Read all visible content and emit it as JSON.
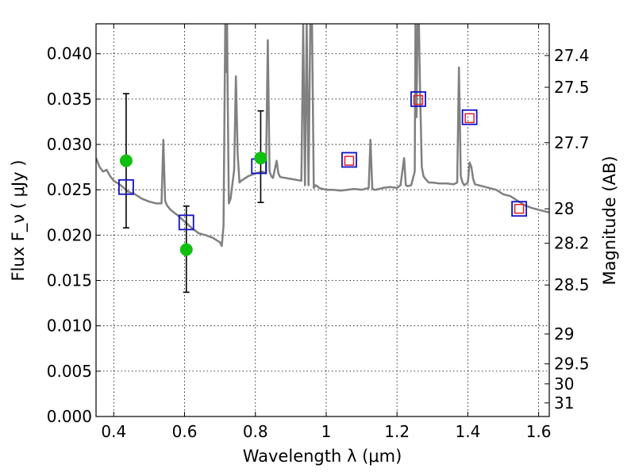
{
  "chart_data": {
    "type": "scatter",
    "xlabel": "Wavelength  λ (μm)",
    "ylabel": "Flux  F_ν  ( μJy )",
    "ylabel_right": "Magnitude (AB)",
    "xlim": [
      0.35,
      1.63
    ],
    "ylim": [
      0.0,
      0.0433
    ],
    "grid": true,
    "x_ticks": [
      0.4,
      0.6,
      0.8,
      1.0,
      1.2,
      1.4,
      1.6
    ],
    "x_tick_labels": [
      "0.4",
      "0.6",
      "0.8",
      "1",
      "1.2",
      "1.4",
      "1.6"
    ],
    "y_ticks": [
      0.0,
      0.005,
      0.01,
      0.015,
      0.02,
      0.025,
      0.03,
      0.035,
      0.04
    ],
    "y_tick_labels": [
      "0.000",
      "0.005",
      "0.010",
      "0.015",
      "0.020",
      "0.025",
      "0.030",
      "0.035",
      "0.040"
    ],
    "right_axis_ticks": [
      {
        "label": "27.4",
        "flux": 0.0398
      },
      {
        "label": "27.5",
        "flux": 0.0363
      },
      {
        "label": "27.7",
        "flux": 0.0302
      },
      {
        "label": "28",
        "flux": 0.0229
      },
      {
        "label": "28.2",
        "flux": 0.0191
      },
      {
        "label": "28.5",
        "flux": 0.0145
      },
      {
        "label": "29",
        "flux": 0.0091
      },
      {
        "label": "29.5",
        "flux": 0.0058
      },
      {
        "label": "30",
        "flux": 0.0036
      },
      {
        "label": "31",
        "flux": 0.0015
      }
    ],
    "series": [
      {
        "name": "model spectrum",
        "kind": "line",
        "color": "#808080",
        "x": [
          0.35,
          0.36,
          0.37,
          0.38,
          0.39,
          0.4,
          0.42,
          0.44,
          0.46,
          0.48,
          0.5,
          0.52,
          0.535,
          0.54,
          0.545,
          0.55,
          0.56,
          0.58,
          0.6,
          0.62,
          0.64,
          0.66,
          0.68,
          0.7,
          0.705,
          0.71,
          0.715,
          0.718,
          0.72,
          0.722,
          0.725,
          0.73,
          0.74,
          0.745,
          0.75,
          0.755,
          0.76,
          0.78,
          0.8,
          0.82,
          0.83,
          0.835,
          0.84,
          0.845,
          0.85,
          0.86,
          0.865,
          0.87,
          0.9,
          0.93,
          0.935,
          0.94,
          0.945,
          0.95,
          0.955,
          0.96,
          0.965,
          0.97,
          0.975,
          0.98,
          1.0,
          1.02,
          1.04,
          1.06,
          1.08,
          1.1,
          1.12,
          1.125,
          1.13,
          1.135,
          1.14,
          1.16,
          1.18,
          1.2,
          1.21,
          1.22,
          1.225,
          1.23,
          1.24,
          1.25,
          1.252,
          1.255,
          1.258,
          1.262,
          1.265,
          1.27,
          1.275,
          1.28,
          1.285,
          1.29,
          1.3,
          1.32,
          1.34,
          1.36,
          1.37,
          1.375,
          1.38,
          1.385,
          1.39,
          1.4,
          1.405,
          1.41,
          1.415,
          1.42,
          1.44,
          1.46,
          1.48,
          1.5,
          1.52,
          1.54,
          1.56,
          1.58,
          1.6,
          1.63
        ],
        "y": [
          0.0285,
          0.0275,
          0.027,
          0.0272,
          0.0265,
          0.026,
          0.0255,
          0.0248,
          0.0245,
          0.024,
          0.0237,
          0.0235,
          0.0235,
          0.0305,
          0.0238,
          0.0233,
          0.0228,
          0.0222,
          0.0215,
          0.0208,
          0.0202,
          0.02,
          0.0197,
          0.0192,
          0.0188,
          0.021,
          0.0433,
          0.038,
          0.0433,
          0.035,
          0.0235,
          0.024,
          0.0272,
          0.0375,
          0.029,
          0.0258,
          0.026,
          0.0265,
          0.0268,
          0.027,
          0.0268,
          0.0415,
          0.027,
          0.0265,
          0.0263,
          0.0282,
          0.0268,
          0.0264,
          0.0262,
          0.026,
          0.0433,
          0.0255,
          0.0433,
          0.0255,
          0.0433,
          0.0433,
          0.0252,
          0.0255,
          0.0254,
          0.0252,
          0.025,
          0.025,
          0.0249,
          0.025,
          0.0251,
          0.025,
          0.0252,
          0.0305,
          0.0252,
          0.025,
          0.025,
          0.0252,
          0.0253,
          0.0252,
          0.0255,
          0.0285,
          0.0255,
          0.0254,
          0.0255,
          0.027,
          0.0433,
          0.033,
          0.0433,
          0.0433,
          0.036,
          0.0275,
          0.0265,
          0.0262,
          0.026,
          0.0258,
          0.0258,
          0.0257,
          0.0257,
          0.0256,
          0.0258,
          0.0385,
          0.0265,
          0.0258,
          0.0255,
          0.0258,
          0.028,
          0.0275,
          0.0262,
          0.0256,
          0.0254,
          0.0252,
          0.025,
          0.0245,
          0.0243,
          0.0238,
          0.0233,
          0.023,
          0.0228,
          0.0225
        ]
      },
      {
        "name": "blue squares",
        "kind": "marker",
        "marker": "square",
        "color": "#1010c8",
        "x": [
          0.435,
          0.605,
          0.81,
          1.065,
          1.26,
          1.405,
          1.545
        ],
        "y": [
          0.0253,
          0.0214,
          0.0276,
          0.0283,
          0.035,
          0.033,
          0.0229
        ]
      },
      {
        "name": "red squares",
        "kind": "marker",
        "marker": "square",
        "color": "#e0202c",
        "x": [
          1.065,
          1.26,
          1.405,
          1.545
        ],
        "y": [
          0.0282,
          0.0349,
          0.0329,
          0.0229
        ]
      },
      {
        "name": "green circles",
        "kind": "marker",
        "marker": "circle",
        "color": "#10c010",
        "x": [
          0.435,
          0.605,
          0.815
        ],
        "y": [
          0.0282,
          0.0184,
          0.0285
        ]
      },
      {
        "name": "error bars",
        "kind": "errorbar",
        "color": "#000000",
        "x": [
          0.435,
          0.605,
          0.815
        ],
        "ylow": [
          0.0208,
          0.0137,
          0.0236
        ],
        "yhigh": [
          0.0356,
          0.0232,
          0.0337
        ]
      }
    ]
  }
}
